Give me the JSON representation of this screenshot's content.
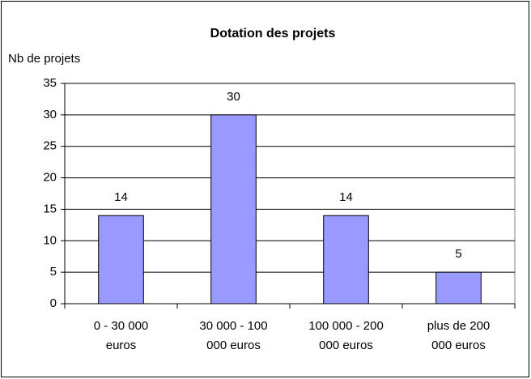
{
  "chart_data": {
    "type": "bar",
    "title": "Dotation des projets",
    "y_label": "Nb de projets",
    "categories": [
      "0 - 30 000 euros",
      "30 000 - 100 000 euros",
      "100 000 - 200 000 euros",
      "plus de 200 000 euros"
    ],
    "values": [
      14,
      30,
      14,
      5
    ],
    "color": "#9999ff",
    "ylim": [
      0,
      35
    ],
    "yticks": [
      0,
      5,
      10,
      15,
      20,
      25,
      30,
      35
    ],
    "grid": true
  }
}
